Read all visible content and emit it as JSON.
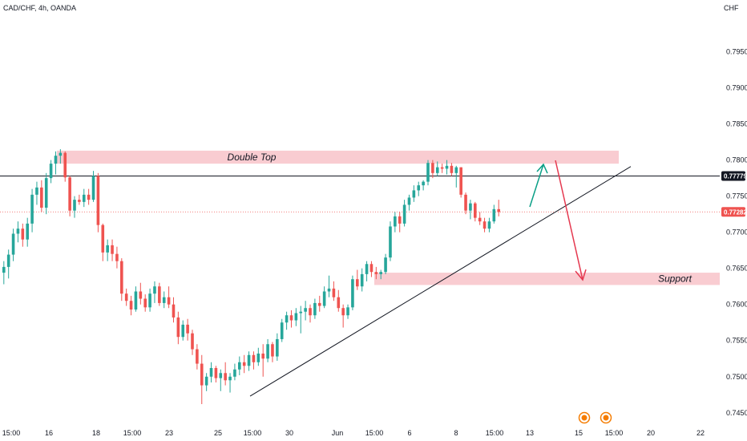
{
  "header": {
    "symbol": "CAD/CHF, 4h, OANDA"
  },
  "axis": {
    "currency": "CHF"
  },
  "colors": {
    "up": "#26a69a",
    "down": "#ef5350",
    "zone": "#f7b6bd",
    "price_badge": "#ef5350",
    "level_badge": "#131722",
    "arrow_up": "#0a9f86",
    "arrow_down": "#e53950",
    "event": "#f57c00"
  },
  "annotations": {
    "double_top": "Double Top",
    "support": "Support"
  },
  "badges": {
    "level": "0.77779",
    "current": "0.77282"
  },
  "chart_data": {
    "type": "candlestick",
    "title": "",
    "ylim": [
      0.7442,
      0.7995
    ],
    "y_ticks": [
      "0.79500",
      "0.79000",
      "0.78500",
      "0.78000",
      "0.77500",
      "0.77000",
      "0.76500",
      "0.76000",
      "0.75500",
      "0.75000",
      "0.74500"
    ],
    "x_ticks": [
      "15:00",
      "16",
      "18",
      "15:00",
      "23",
      "25",
      "15:00",
      "30",
      "Jun",
      "15:00",
      "6",
      "8",
      "15:00",
      "13",
      "15",
      "15:00",
      "20",
      "22"
    ],
    "horizontal_level": 0.77779,
    "current_price": 0.77282,
    "zones": [
      {
        "label": "Double Top",
        "from": 0.7795,
        "to": 0.7813
      },
      {
        "label": "Support",
        "from": 0.7627,
        "to": 0.7644
      }
    ],
    "trendline": {
      "from": 0.7473,
      "to": 0.7791
    },
    "projection": {
      "up_to": 0.7794,
      "down_to": 0.7634
    },
    "events": 2,
    "candles": [
      [
        0.7644,
        0.766,
        0.7628,
        0.7652
      ],
      [
        0.7652,
        0.7676,
        0.7636,
        0.7669
      ],
      [
        0.7669,
        0.7705,
        0.766,
        0.7698
      ],
      [
        0.7698,
        0.7715,
        0.7686,
        0.7705
      ],
      [
        0.7705,
        0.7712,
        0.768,
        0.769
      ],
      [
        0.769,
        0.772,
        0.768,
        0.7712
      ],
      [
        0.7712,
        0.776,
        0.77,
        0.7752
      ],
      [
        0.7752,
        0.777,
        0.7738,
        0.7762
      ],
      [
        0.7762,
        0.7772,
        0.7728,
        0.7734
      ],
      [
        0.7734,
        0.7782,
        0.7725,
        0.7775
      ],
      [
        0.7775,
        0.78,
        0.7768,
        0.7795
      ],
      [
        0.7795,
        0.7812,
        0.778,
        0.7806
      ],
      [
        0.7806,
        0.7815,
        0.7795,
        0.781
      ],
      [
        0.781,
        0.7812,
        0.777,
        0.7776
      ],
      [
        0.7776,
        0.7778,
        0.7722,
        0.773
      ],
      [
        0.773,
        0.775,
        0.772,
        0.7745
      ],
      [
        0.7745,
        0.7752,
        0.7738,
        0.7742
      ],
      [
        0.7742,
        0.776,
        0.7735,
        0.7752
      ],
      [
        0.7752,
        0.776,
        0.7738,
        0.7745
      ],
      [
        0.7745,
        0.7785,
        0.7742,
        0.7778
      ],
      [
        0.7778,
        0.7782,
        0.77,
        0.771
      ],
      [
        0.771,
        0.7712,
        0.766,
        0.7672
      ],
      [
        0.7672,
        0.769,
        0.766,
        0.7682
      ],
      [
        0.7682,
        0.769,
        0.766,
        0.767
      ],
      [
        0.767,
        0.768,
        0.765,
        0.766
      ],
      [
        0.766,
        0.7664,
        0.7605,
        0.7615
      ],
      [
        0.7615,
        0.7622,
        0.7598,
        0.7605
      ],
      [
        0.7605,
        0.7612,
        0.7585,
        0.7593
      ],
      [
        0.7593,
        0.7625,
        0.759,
        0.7618
      ],
      [
        0.7618,
        0.763,
        0.76,
        0.7608
      ],
      [
        0.7608,
        0.7614,
        0.759,
        0.7596
      ],
      [
        0.7596,
        0.7622,
        0.759,
        0.7615
      ],
      [
        0.7615,
        0.7632,
        0.7602,
        0.7625
      ],
      [
        0.7625,
        0.763,
        0.7598,
        0.7602
      ],
      [
        0.7602,
        0.7618,
        0.7595,
        0.761
      ],
      [
        0.761,
        0.7625,
        0.7595,
        0.76
      ],
      [
        0.76,
        0.761,
        0.7575,
        0.7582
      ],
      [
        0.7582,
        0.759,
        0.7545,
        0.7555
      ],
      [
        0.7555,
        0.7578,
        0.755,
        0.7572
      ],
      [
        0.7572,
        0.758,
        0.755,
        0.756
      ],
      [
        0.756,
        0.7565,
        0.753,
        0.7538
      ],
      [
        0.7538,
        0.7545,
        0.751,
        0.7518
      ],
      [
        0.7518,
        0.753,
        0.7462,
        0.7488
      ],
      [
        0.7488,
        0.7505,
        0.748,
        0.75
      ],
      [
        0.75,
        0.752,
        0.7492,
        0.7512
      ],
      [
        0.7512,
        0.7515,
        0.7492,
        0.7498
      ],
      [
        0.7498,
        0.751,
        0.748,
        0.7505
      ],
      [
        0.7505,
        0.752,
        0.7488,
        0.7495
      ],
      [
        0.7495,
        0.7505,
        0.7478,
        0.75
      ],
      [
        0.75,
        0.7518,
        0.7495,
        0.751
      ],
      [
        0.751,
        0.7528,
        0.7502,
        0.752
      ],
      [
        0.752,
        0.753,
        0.7505,
        0.7515
      ],
      [
        0.7515,
        0.7535,
        0.7508,
        0.753
      ],
      [
        0.753,
        0.7535,
        0.751,
        0.752
      ],
      [
        0.752,
        0.754,
        0.7515,
        0.7532
      ],
      [
        0.7532,
        0.7545,
        0.75,
        0.7525
      ],
      [
        0.7525,
        0.7552,
        0.752,
        0.7545
      ],
      [
        0.7545,
        0.7548,
        0.752,
        0.7528
      ],
      [
        0.7528,
        0.756,
        0.7522,
        0.7552
      ],
      [
        0.7552,
        0.758,
        0.7548,
        0.7575
      ],
      [
        0.7575,
        0.759,
        0.7565,
        0.7585
      ],
      [
        0.7585,
        0.7592,
        0.7568,
        0.7578
      ],
      [
        0.7578,
        0.7595,
        0.757,
        0.7588
      ],
      [
        0.7588,
        0.7598,
        0.756,
        0.759
      ],
      [
        0.759,
        0.7605,
        0.7578,
        0.7595
      ],
      [
        0.7595,
        0.76,
        0.7575,
        0.7585
      ],
      [
        0.7585,
        0.7608,
        0.758,
        0.7602
      ],
      [
        0.7602,
        0.7612,
        0.759,
        0.7598
      ],
      [
        0.7598,
        0.7625,
        0.7595,
        0.7618
      ],
      [
        0.7618,
        0.764,
        0.761,
        0.7622
      ],
      [
        0.7622,
        0.7632,
        0.7605,
        0.761
      ],
      [
        0.761,
        0.762,
        0.759,
        0.7595
      ],
      [
        0.7595,
        0.76,
        0.7568,
        0.7585
      ],
      [
        0.7585,
        0.76,
        0.758,
        0.7596
      ],
      [
        0.7596,
        0.764,
        0.7592,
        0.7635
      ],
      [
        0.7635,
        0.7648,
        0.762,
        0.7625
      ],
      [
        0.7625,
        0.765,
        0.7618,
        0.7642
      ],
      [
        0.7642,
        0.766,
        0.7632,
        0.7656
      ],
      [
        0.7656,
        0.766,
        0.7638,
        0.7645
      ],
      [
        0.7645,
        0.7652,
        0.7635,
        0.7642
      ],
      [
        0.7642,
        0.7648,
        0.7635,
        0.7645
      ],
      [
        0.7645,
        0.767,
        0.7642,
        0.7665
      ],
      [
        0.7665,
        0.7715,
        0.766,
        0.7708
      ],
      [
        0.7708,
        0.7728,
        0.77,
        0.7722
      ],
      [
        0.7722,
        0.7728,
        0.77,
        0.7712
      ],
      [
        0.7712,
        0.7745,
        0.7708,
        0.7738
      ],
      [
        0.7738,
        0.7752,
        0.773,
        0.7748
      ],
      [
        0.7748,
        0.7765,
        0.7742,
        0.7758
      ],
      [
        0.7758,
        0.777,
        0.775,
        0.7765
      ],
      [
        0.7765,
        0.7772,
        0.7758,
        0.777
      ],
      [
        0.777,
        0.78,
        0.7765,
        0.7796
      ],
      [
        0.7796,
        0.78,
        0.7775,
        0.7782
      ],
      [
        0.7782,
        0.7798,
        0.7778,
        0.779
      ],
      [
        0.779,
        0.7795,
        0.7782,
        0.7788
      ],
      [
        0.7788,
        0.78,
        0.778,
        0.7792
      ],
      [
        0.7792,
        0.7796,
        0.7778,
        0.7782
      ],
      [
        0.7782,
        0.7792,
        0.7762,
        0.779
      ],
      [
        0.779,
        0.779,
        0.7748,
        0.7752
      ],
      [
        0.7752,
        0.7755,
        0.7725,
        0.773
      ],
      [
        0.773,
        0.7745,
        0.7718,
        0.774
      ],
      [
        0.774,
        0.7742,
        0.7715,
        0.772
      ],
      [
        0.772,
        0.7728,
        0.771,
        0.7715
      ],
      [
        0.7715,
        0.772,
        0.77,
        0.7705
      ],
      [
        0.7705,
        0.772,
        0.77,
        0.7715
      ],
      [
        0.7715,
        0.7738,
        0.7712,
        0.7732
      ],
      [
        0.7732,
        0.7745,
        0.7722,
        0.7728
      ]
    ]
  }
}
